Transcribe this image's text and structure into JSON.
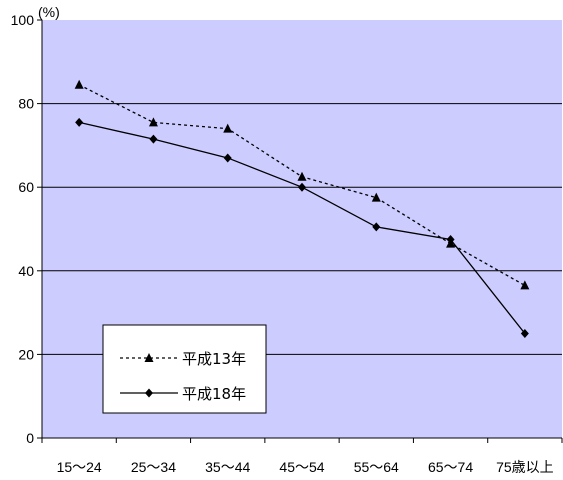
{
  "chart_data": {
    "type": "line",
    "unit_label": "(%)",
    "categories": [
      "15～24",
      "25～34",
      "35～44",
      "45～54",
      "55～64",
      "65～74",
      "75歳以上"
    ],
    "ylim": [
      0,
      100
    ],
    "yticks": [
      0,
      20,
      40,
      60,
      80,
      100
    ],
    "grid": true,
    "legend_position": "bottom-left",
    "plot_background": "#ccccff",
    "series": [
      {
        "name": "平成13年",
        "values": [
          84.5,
          75.5,
          74,
          62.5,
          57.5,
          46.5,
          36.5
        ],
        "color": "#000000",
        "dash": "dotted",
        "marker": "triangle"
      },
      {
        "name": "平成18年",
        "values": [
          75.5,
          71.5,
          67,
          60,
          50.5,
          47.5,
          25
        ],
        "color": "#000000",
        "dash": "solid",
        "marker": "diamond"
      }
    ]
  }
}
